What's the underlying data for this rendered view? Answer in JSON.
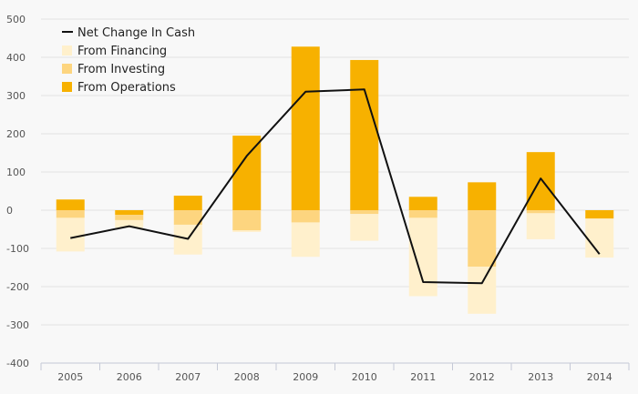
{
  "chart_data": {
    "type": "bar",
    "stacked": true,
    "categories": [
      "2005",
      "2006",
      "2007",
      "2008",
      "2009",
      "2010",
      "2011",
      "2012",
      "2013",
      "2014"
    ],
    "ylim": [
      -400,
      500
    ],
    "yticks": [
      500,
      400,
      300,
      200,
      100,
      0,
      -100,
      -200,
      -300,
      -400
    ],
    "grid": true,
    "legend_position": "top-left",
    "series": [
      {
        "name": "From Operations",
        "kind": "bar",
        "color": "#f7b100",
        "values": [
          28,
          -12,
          38,
          195,
          428,
          393,
          35,
          73,
          152,
          -22
        ]
      },
      {
        "name": "From Investing",
        "kind": "bar",
        "color": "#fdd57f",
        "values": [
          -20,
          -14,
          -38,
          -53,
          -32,
          -10,
          -20,
          -148,
          -8,
          0
        ]
      },
      {
        "name": "From Financing",
        "kind": "bar",
        "color": "#fff0cc",
        "values": [
          -88,
          -20,
          -78,
          -4,
          -90,
          -70,
          -205,
          -123,
          -68,
          -102
        ]
      },
      {
        "name": "Net Change In Cash",
        "kind": "line",
        "color": "#111111",
        "values": [
          -73,
          -42,
          -75,
          142,
          310,
          316,
          -188,
          -191,
          83,
          -115
        ]
      }
    ],
    "legend": [
      "Net Change In Cash",
      "From Financing",
      "From Investing",
      "From Operations"
    ]
  }
}
